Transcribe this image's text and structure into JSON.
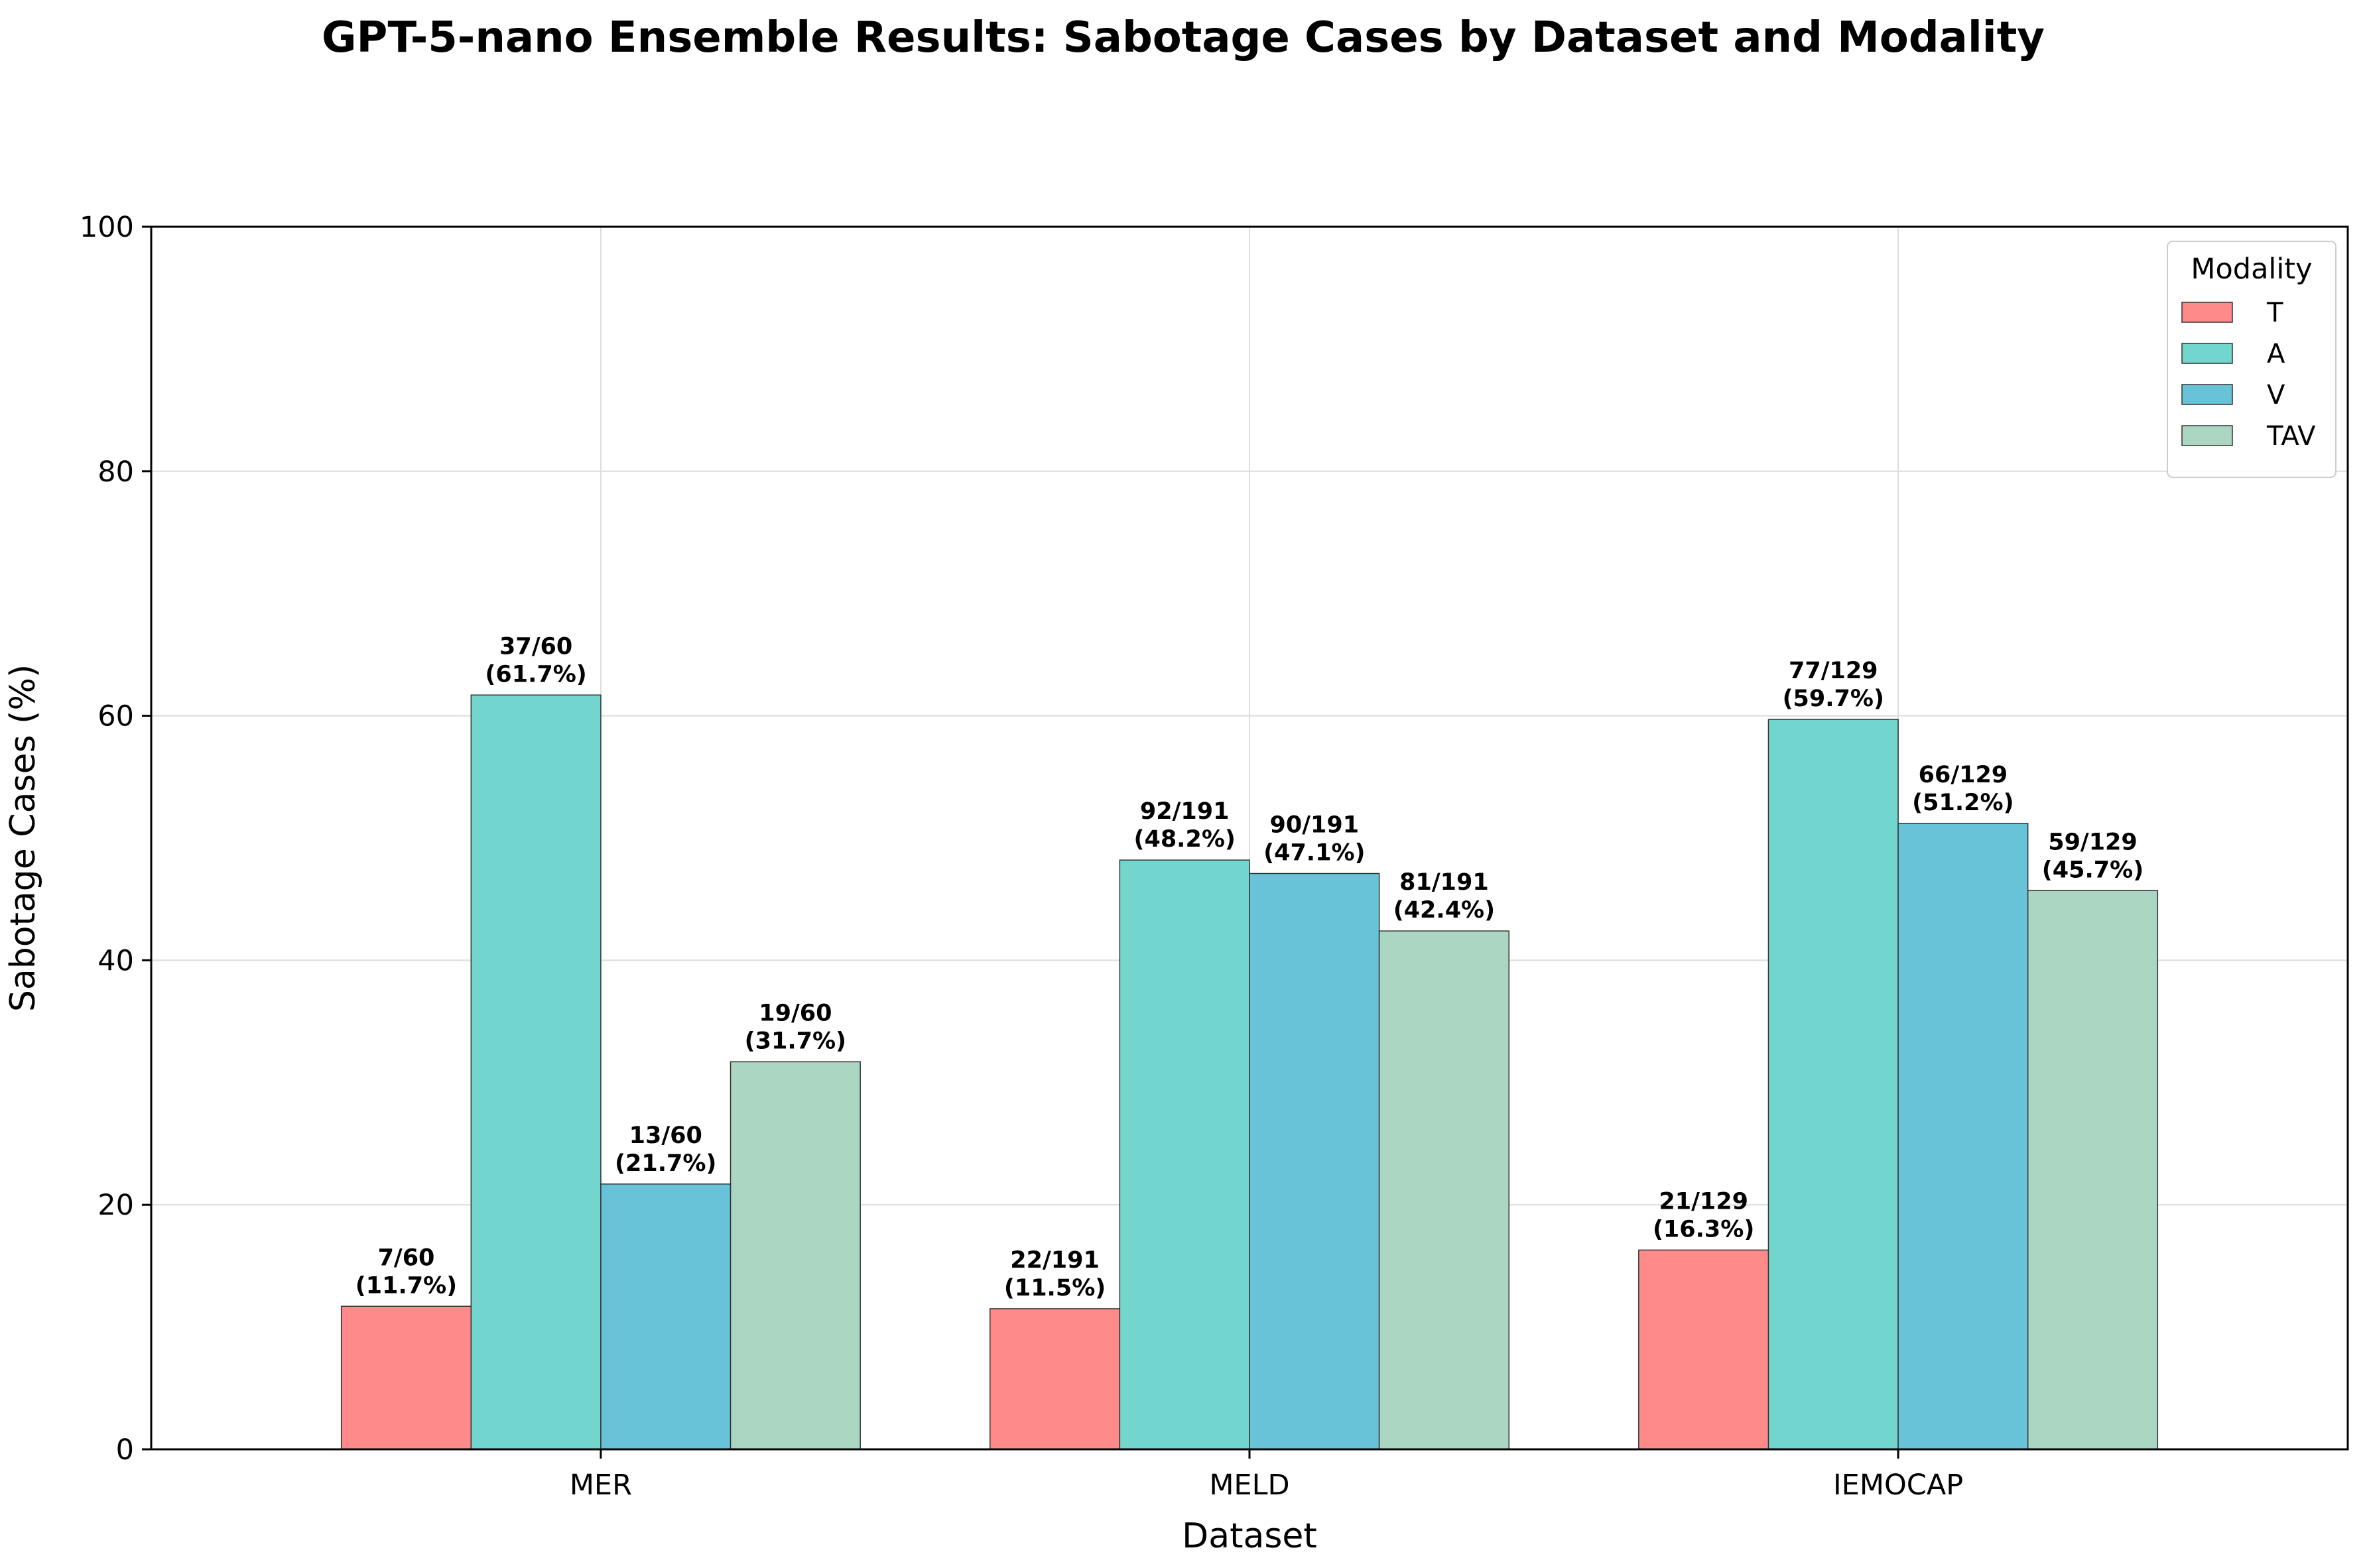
{
  "chart_data": {
    "type": "bar",
    "title": "GPT-5-nano Ensemble Results: Sabotage Cases by Dataset and Modality",
    "xlabel": "Dataset",
    "ylabel": "Sabotage Cases (%)",
    "ylim": [
      0,
      100
    ],
    "yticks": [
      "0",
      "20",
      "40",
      "60",
      "80",
      "100"
    ],
    "grid": true,
    "legend": {
      "title": "Modality",
      "placement": "top-right"
    },
    "categories": [
      "MER",
      "MELD",
      "IEMOCAP"
    ],
    "series": [
      {
        "name": "T",
        "color": "#ff8a8a",
        "values": [
          11.7,
          11.5,
          16.3
        ],
        "labels": [
          {
            "count": "7/60",
            "pct": "(11.7%)"
          },
          {
            "count": "22/191",
            "pct": "(11.5%)"
          },
          {
            "count": "21/129",
            "pct": "(16.3%)"
          }
        ]
      },
      {
        "name": "A",
        "color": "#72d6cf",
        "values": [
          61.7,
          48.2,
          59.7
        ],
        "labels": [
          {
            "count": "37/60",
            "pct": "(61.7%)"
          },
          {
            "count": "92/191",
            "pct": "(48.2%)"
          },
          {
            "count": "77/129",
            "pct": "(59.7%)"
          }
        ]
      },
      {
        "name": "V",
        "color": "#69c3d8",
        "values": [
          21.7,
          47.1,
          51.2
        ],
        "labels": [
          {
            "count": "13/60",
            "pct": "(21.7%)"
          },
          {
            "count": "90/191",
            "pct": "(47.1%)"
          },
          {
            "count": "66/129",
            "pct": "(51.2%)"
          }
        ]
      },
      {
        "name": "TAV",
        "color": "#abd6c2",
        "values": [
          31.7,
          42.4,
          45.7
        ],
        "labels": [
          {
            "count": "19/60",
            "pct": "(31.7%)"
          },
          {
            "count": "81/191",
            "pct": "(42.4%)"
          },
          {
            "count": "59/129",
            "pct": "(45.7%)"
          }
        ]
      }
    ]
  }
}
